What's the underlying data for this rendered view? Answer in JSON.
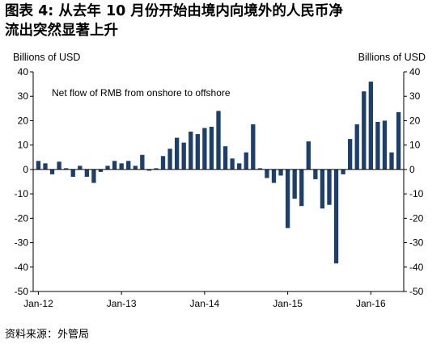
{
  "title_lines": [
    "图表 4: 从去年 10 月份开始由境内向境外的人民币净",
    "流出突然显著上升"
  ],
  "source": "资料来源：外管局",
  "chart_data": {
    "type": "bar",
    "annotation": "Net flow of RMB from onshore to offshore",
    "ylabel_left": "Billions of USD",
    "ylabel_right": "Billions of USD",
    "ylim": [
      -50,
      40
    ],
    "yticks": [
      -50,
      -40,
      -30,
      -20,
      -10,
      0,
      10,
      20,
      30,
      40
    ],
    "xtick_labels": [
      {
        "label": "Jan-12",
        "index": 0
      },
      {
        "label": "Jan-13",
        "index": 12
      },
      {
        "label": "Jan-14",
        "index": 24
      },
      {
        "label": "Jan-15",
        "index": 36
      },
      {
        "label": "Jan-16",
        "index": 48
      }
    ],
    "bar_color": "#1c3f6e",
    "categories": [
      "2012-01",
      "2012-02",
      "2012-03",
      "2012-04",
      "2012-05",
      "2012-06",
      "2012-07",
      "2012-08",
      "2012-09",
      "2012-10",
      "2012-11",
      "2012-12",
      "2013-01",
      "2013-02",
      "2013-03",
      "2013-04",
      "2013-05",
      "2013-06",
      "2013-07",
      "2013-08",
      "2013-09",
      "2013-10",
      "2013-11",
      "2013-12",
      "2014-01",
      "2014-02",
      "2014-03",
      "2014-04",
      "2014-05",
      "2014-06",
      "2014-07",
      "2014-08",
      "2014-09",
      "2014-10",
      "2014-11",
      "2014-12",
      "2015-01",
      "2015-02",
      "2015-03",
      "2015-04",
      "2015-05",
      "2015-06",
      "2015-07",
      "2015-08",
      "2015-09",
      "2015-10",
      "2015-11",
      "2015-12",
      "2016-01",
      "2016-02",
      "2016-03",
      "2016-04",
      "2016-05"
    ],
    "values": [
      3.5,
      2.5,
      -2,
      3.2,
      0.5,
      -3,
      1.5,
      -3,
      -5.5,
      -1,
      1.5,
      3.5,
      2.5,
      3.5,
      1.5,
      6,
      -0.5,
      0.5,
      5.5,
      8.5,
      13,
      11,
      15.5,
      14.5,
      17,
      17.5,
      24,
      9.5,
      4.5,
      2.5,
      7,
      18.5,
      0.5,
      -3.5,
      -5.5,
      -2.5,
      -24,
      -12,
      -15,
      11.5,
      -4,
      -16,
      -14.5,
      -38.5,
      -2,
      12.5,
      18.5,
      32,
      36,
      19.5,
      20,
      7,
      23.5
    ]
  }
}
